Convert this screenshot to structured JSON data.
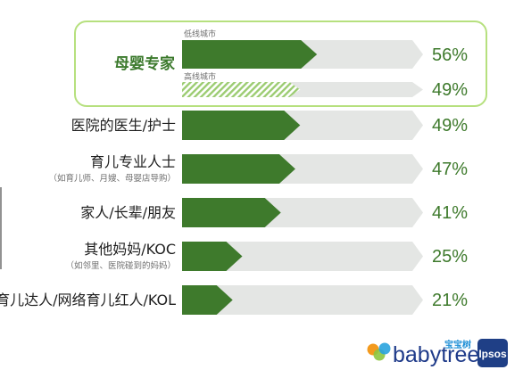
{
  "chart_data": {
    "type": "bar",
    "orientation": "horizontal",
    "xlim": [
      0,
      100
    ],
    "highlight": {
      "label": "母婴专家",
      "rows": [
        {
          "tag": "低线城市",
          "value": 56,
          "value_label": "56%",
          "style": "solid"
        },
        {
          "tag": "高线城市",
          "value": 49,
          "value_label": "49%",
          "style": "hatched"
        }
      ]
    },
    "categories": [
      {
        "label": "医院的医生/护士",
        "sublabel": "",
        "value": 49,
        "value_label": "49%"
      },
      {
        "label": "育儿专业人士",
        "sublabel": "（如育儿师、月嫂、母婴店导购）",
        "value": 47,
        "value_label": "47%"
      },
      {
        "label": "家人/长辈/朋友",
        "sublabel": "",
        "value": 41,
        "value_label": "41%"
      },
      {
        "label": "其他妈妈/KOC",
        "sublabel": "（如邻里、医院碰到的妈妈）",
        "value": 25,
        "value_label": "25%"
      },
      {
        "label": "育儿达人/网络育儿红人/KOL",
        "sublabel": "",
        "value": 21,
        "value_label": "21%"
      }
    ],
    "colors": {
      "bar": "#3e7a2c",
      "track": "#e4e6e4",
      "highlight_border": "#b6e07e",
      "highlight_value": "#a6d87a",
      "hatch": "#9ccc72"
    }
  },
  "logos": {
    "brand_cn": "宝宝树",
    "brand": "babytree",
    "partner": "Ipsos"
  }
}
